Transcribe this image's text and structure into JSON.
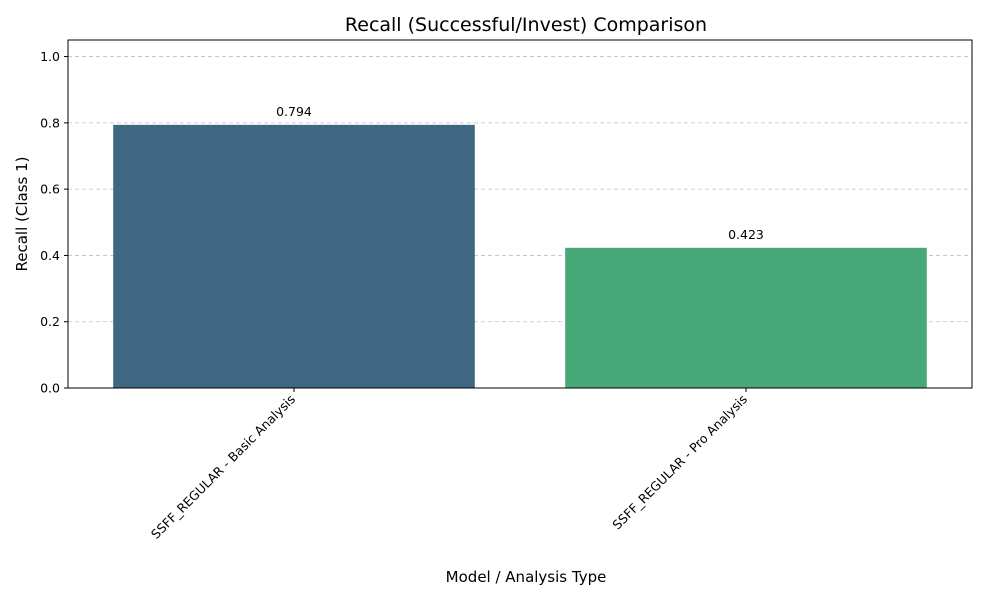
{
  "chart_data": {
    "type": "bar",
    "title": "Recall (Successful/Invest) Comparison",
    "xlabel": "Model / Analysis Type",
    "ylabel": "Recall (Class 1)",
    "categories": [
      "SSFF_REGULAR - Basic Analysis",
      "SSFF_REGULAR - Pro Analysis"
    ],
    "values": [
      0.794,
      0.423
    ],
    "value_labels": [
      "0.794",
      "0.423"
    ],
    "colors": [
      "#3e6782",
      "#47a878"
    ],
    "ylim": [
      0,
      1.05
    ],
    "yticks": [
      0.0,
      0.2,
      0.4,
      0.6,
      0.8,
      1.0
    ],
    "ytick_labels": [
      "0.0",
      "0.2",
      "0.4",
      "0.6",
      "0.8",
      "1.0"
    ],
    "grid": "y-dashed",
    "legend": "none"
  }
}
